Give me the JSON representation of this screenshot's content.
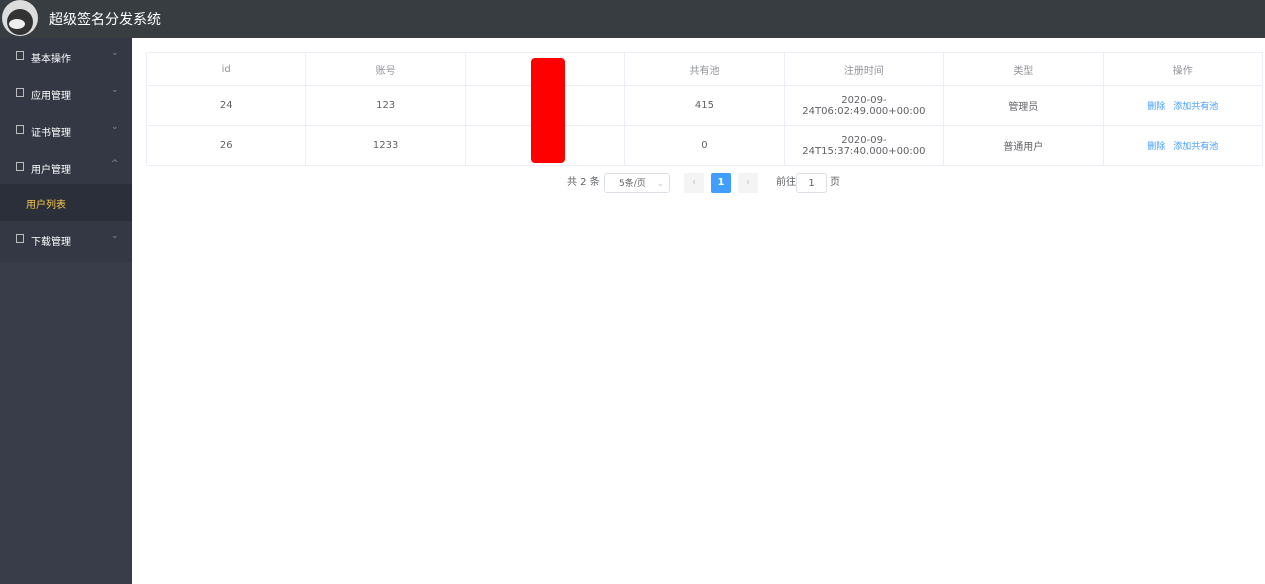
{
  "header": {
    "title": "超级签名分发系统"
  },
  "sidebar": {
    "items": [
      {
        "label": "基本操作"
      },
      {
        "label": "应用管理"
      },
      {
        "label": "证书管理"
      },
      {
        "label": "用户管理",
        "children": [
          "用户列表"
        ]
      },
      {
        "label": "下载管理"
      }
    ]
  },
  "table": {
    "columns": [
      "id",
      "账号",
      "共有池",
      "注册时间",
      "类型",
      "操作"
    ],
    "rows": [
      [
        "24",
        "123",
        "415",
        "2020-09-24T06:02:49.000+00:00",
        "管理员"
      ],
      [
        "26",
        "1233",
        "0",
        "2020-09-24T15:37:40.000+00:00",
        "普通用户"
      ]
    ],
    "actions": [
      "删除",
      "添加共有池"
    ]
  },
  "pagination": {
    "total": "共 2 条",
    "page_size": "5条/页",
    "current": "1",
    "goto": "前往",
    "goto_value": "1",
    "page_unit": "页"
  }
}
